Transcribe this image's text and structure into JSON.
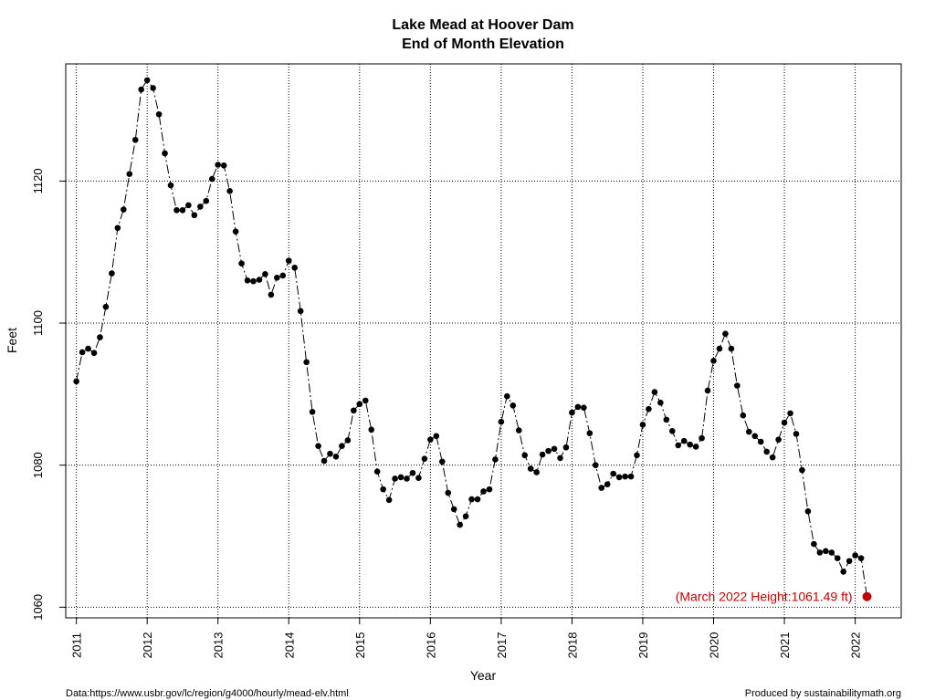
{
  "chart_data": {
    "type": "line",
    "title": "Lake Mead at Hoover Dam",
    "subtitle": "End of Month Elevation",
    "xlabel": "Year",
    "ylabel": "Feet",
    "xlim": [
      2010.85,
      2022.65
    ],
    "ylim": [
      1058.5,
      1136.5
    ],
    "x_ticks": [
      2011,
      2012,
      2013,
      2014,
      2015,
      2016,
      2017,
      2018,
      2019,
      2020,
      2021,
      2022
    ],
    "y_ticks": [
      1060,
      1080,
      1100,
      1120
    ],
    "grid": true,
    "start": "2011-01",
    "series": [
      {
        "values": [
          1091.8,
          1095.9,
          1096.4,
          1095.8,
          1098.0,
          1102.3,
          1107.0,
          1113.4,
          1116.0,
          1121.0,
          1125.8,
          1132.9,
          1134.2,
          1133.1,
          1129.4,
          1123.9,
          1119.4,
          1115.9,
          1115.9,
          1116.6,
          1115.2,
          1116.4,
          1117.2,
          1120.3,
          1122.3,
          1122.2,
          1118.6,
          1112.9,
          1108.4,
          1106.0,
          1105.9,
          1106.1,
          1106.9,
          1104.0,
          1106.4,
          1106.7,
          1108.8,
          1107.8,
          1101.7,
          1094.5,
          1087.5,
          1082.7,
          1080.6,
          1081.6,
          1081.2,
          1082.7,
          1083.5,
          1087.7,
          1088.6,
          1089.1,
          1085.0,
          1079.1,
          1076.6,
          1075.1,
          1078.1,
          1078.3,
          1078.1,
          1078.9,
          1078.2,
          1080.9,
          1083.6,
          1084.1,
          1080.5,
          1076.1,
          1073.8,
          1071.6,
          1072.8,
          1075.2,
          1075.2,
          1076.3,
          1076.6,
          1080.8,
          1086.1,
          1089.7,
          1088.4,
          1084.9,
          1081.4,
          1079.5,
          1079.0,
          1081.5,
          1082.0,
          1082.3,
          1081.0,
          1082.5,
          1087.4,
          1088.2,
          1088.1,
          1084.5,
          1080.0,
          1076.8,
          1077.3,
          1078.8,
          1078.3,
          1078.4,
          1078.4,
          1081.4,
          1085.7,
          1087.9,
          1090.3,
          1088.8,
          1086.4,
          1084.8,
          1082.8,
          1083.4,
          1082.9,
          1082.6,
          1083.8,
          1090.5,
          1094.7,
          1096.4,
          1098.5,
          1096.4,
          1091.2,
          1087.0,
          1084.7,
          1084.1,
          1083.3,
          1081.9,
          1081.1,
          1083.6,
          1086.0,
          1087.3,
          1084.4,
          1079.3,
          1073.5,
          1068.9,
          1067.7,
          1067.9,
          1067.7,
          1066.9,
          1065.0,
          1066.5,
          1067.3,
          1066.9
        ]
      }
    ],
    "highlight": {
      "date": "2022-03",
      "value": 1061.49,
      "color": "#c00000"
    },
    "annotation": "(March 2022 Height:1061.49 ft)"
  },
  "footer": {
    "left": "Data:https://www.usbr.gov/lc/region/g4000/hourly/mead-elv.html",
    "right": "Produced by sustainabilitymath.org"
  }
}
